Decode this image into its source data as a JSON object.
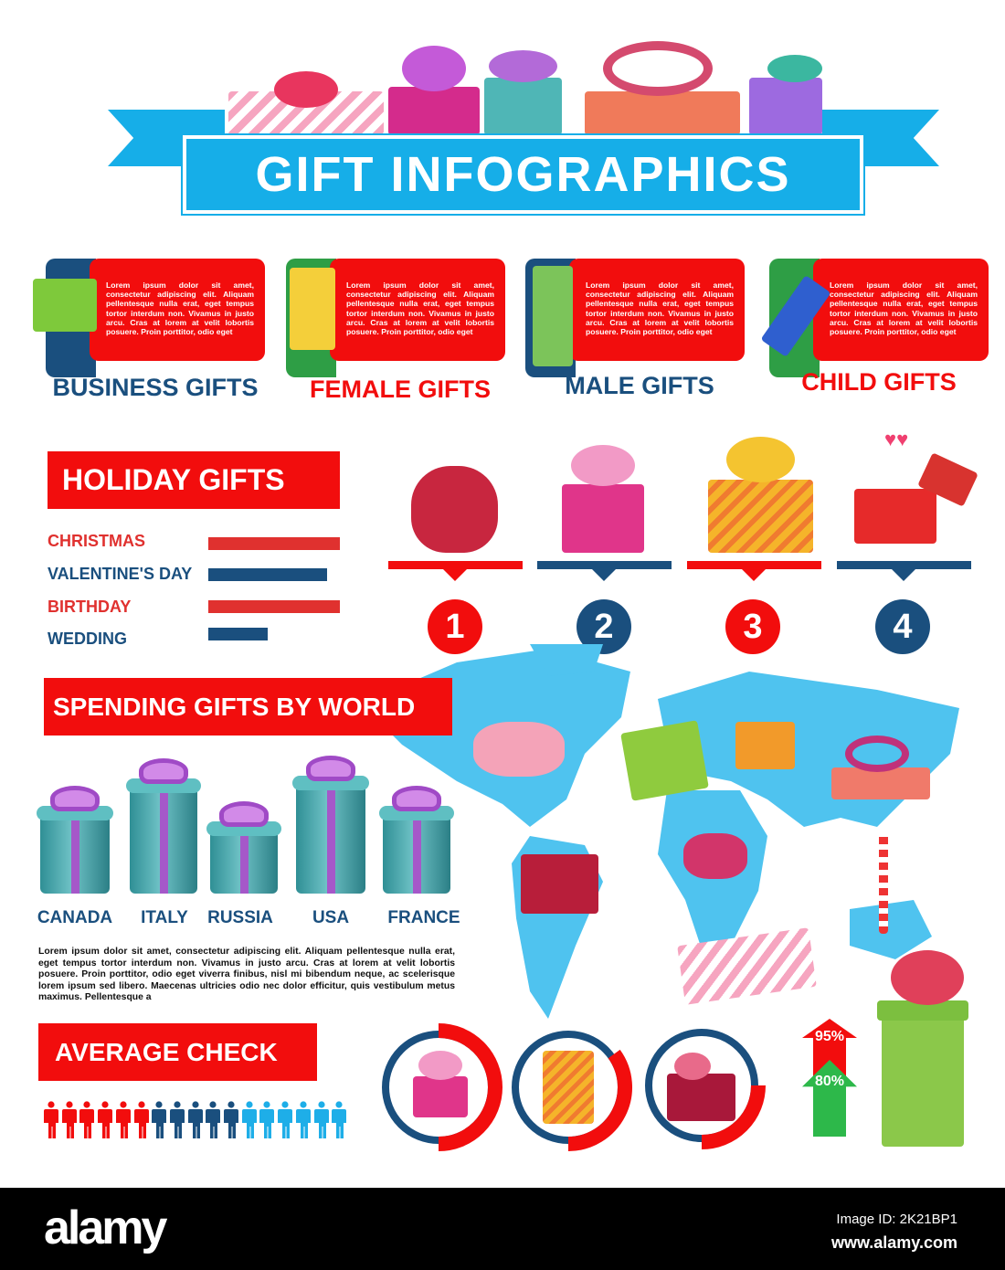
{
  "title": "GIFT INFOGRAPHICS",
  "categories": [
    {
      "label": "BUSINESS GIFTS",
      "text": "Lorem ipsum dolor sit amet, consectetur adipiscing elit. Aliquam pellentesque nulla erat, eget tempus tortor interdum non. Vivamus in justo arcu. Cras at lorem at velit lobortis posuere. Proin porttitor, odio eget",
      "label_color": "#1a4f7e",
      "accent": "#1a4f7e"
    },
    {
      "label": "FEMALE GIFTS",
      "text": "Lorem ipsum dolor sit amet, consectetur adipiscing elit. Aliquam pellentesque nulla erat, eget tempus tortor interdum non. Vivamus in justo arcu. Cras at lorem at velit lobortis posuere. Proin porttitor, odio eget",
      "label_color": "#f20d0d",
      "accent": "#2e9e45"
    },
    {
      "label": "MALE GIFTS",
      "text": "Lorem ipsum dolor sit amet, consectetur adipiscing elit. Aliquam pellentesque nulla erat, eget tempus tortor interdum non. Vivamus in justo arcu. Cras at lorem at velit lobortis posuere. Proin porttitor, odio eget",
      "label_color": "#1a4f7e",
      "accent": "#1a4f7e"
    },
    {
      "label": "CHILD GIFTS",
      "text": "Lorem ipsum dolor sit amet, consectetur adipiscing elit. Aliquam pellentesque nulla erat, eget tempus tortor interdum non. Vivamus in justo arcu. Cras at lorem at velit lobortis posuere. Proin porttitor, odio eget",
      "label_color": "#f20d0d",
      "accent": "#2e9e45"
    }
  ],
  "holiday": {
    "title": "HOLIDAY GIFTS",
    "items": [
      {
        "label": "CHRISTMAS",
        "value": 1.0,
        "color": "#e0312f"
      },
      {
        "label": "VALENTINE'S DAY",
        "value": 0.9,
        "color": "#1a4f7e"
      },
      {
        "label": "BIRTHDAY",
        "value": 1.0,
        "color": "#e0312f"
      },
      {
        "label": "WEDDING",
        "value": 0.45,
        "color": "#1a4f7e"
      }
    ],
    "steps": [
      "1",
      "2",
      "3",
      "4"
    ]
  },
  "spending": {
    "title": "SPENDING GIFTS BY WORLD",
    "countries": [
      "CANADA",
      "ITALY",
      "RUSSIA",
      "USA",
      "FRANCE"
    ],
    "paragraph": "Lorem ipsum dolor sit amet, consectetur adipiscing elit. Aliquam pellentesque nulla erat, eget tempus tortor interdum non. Vivamus in justo arcu. Cras at lorem at velit lobortis posuere. Proin porttitor, odio eget viverra finibus, nisl mi bibendum neque, ac scelerisque lorem ipsum sed libero. Maecenas ultricies odio nec dolor efficitur, quis vestibulum metus maximus. Pellentesque a"
  },
  "average_check": {
    "title": "AVERAGE CHECK",
    "people": {
      "red": 6,
      "dark_blue": 5,
      "light_blue": 6
    },
    "rings": [
      0.5,
      0.35,
      0.25
    ],
    "arrows": [
      "95%",
      "80%"
    ]
  },
  "colors": {
    "red": "#f20d0d",
    "dark_blue": "#1a4f7e",
    "cyan": "#16aee8",
    "light_blue": "#1eaee8",
    "green": "#2db84a",
    "map": "#4fc3ef"
  },
  "footer": {
    "logo": "alamy",
    "image_id": "Image ID: 2K21BP1",
    "url": "www.alamy.com"
  }
}
